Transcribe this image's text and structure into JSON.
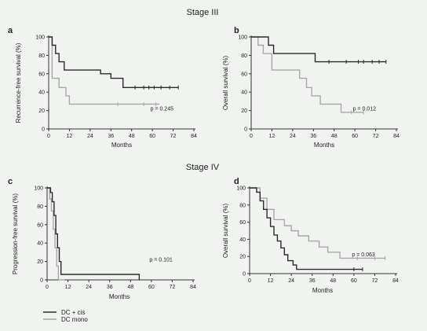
{
  "headings": {
    "top": "Stage III",
    "bottom": "Stage  IV"
  },
  "colors": {
    "dc_cis": "#2b2b2b",
    "dc_mono": "#a8a8a8",
    "axis": "#333333",
    "background": "#f1f3f1"
  },
  "legend": [
    {
      "label": "DC + cis",
      "color": "#2b2b2b"
    },
    {
      "label": "DC mono",
      "color": "#a8a8a8"
    }
  ],
  "chart_data": [
    {
      "type": "line",
      "panel": "a",
      "ylabel": "Recurrence-free survival (%)",
      "xlabel": "Months",
      "xlim": [
        0,
        84
      ],
      "ylim": [
        0,
        100
      ],
      "xticks": [
        0,
        12,
        24,
        36,
        48,
        60,
        72,
        84
      ],
      "yticks": [
        0,
        20,
        40,
        60,
        80,
        100
      ],
      "annotation": "p = 0.245",
      "series": [
        {
          "name": "DC + cis",
          "color": "#2b2b2b",
          "x": [
            0,
            2,
            2,
            4,
            4,
            6,
            6,
            9,
            9,
            30,
            30,
            36,
            36,
            43,
            43,
            75
          ],
          "y": [
            100,
            100,
            91,
            91,
            82,
            82,
            73,
            73,
            64,
            64,
            60,
            60,
            55,
            55,
            45,
            45
          ],
          "censor_x": [
            50,
            55,
            58,
            61,
            65,
            70,
            75
          ],
          "censor_y": [
            45,
            45,
            45,
            45,
            45,
            45,
            45
          ]
        },
        {
          "name": "DC mono",
          "color": "#a8a8a8",
          "x": [
            0,
            2,
            2,
            6,
            6,
            10,
            10,
            12,
            12,
            64
          ],
          "y": [
            100,
            100,
            55,
            55,
            45,
            45,
            36,
            36,
            27,
            27
          ],
          "censor_x": [
            40,
            55,
            62
          ],
          "censor_y": [
            27,
            27,
            27
          ]
        }
      ]
    },
    {
      "type": "line",
      "panel": "b",
      "ylabel": "Overall survival (%)",
      "xlabel": "Months",
      "xlim": [
        0,
        84
      ],
      "ylim": [
        0,
        100
      ],
      "xticks": [
        0,
        12,
        24,
        36,
        48,
        60,
        72,
        84
      ],
      "yticks": [
        0,
        20,
        40,
        60,
        80,
        100
      ],
      "annotation": "p = 0.012",
      "series": [
        {
          "name": "DC + cis",
          "color": "#2b2b2b",
          "x": [
            0,
            10,
            10,
            13,
            13,
            37,
            37,
            78
          ],
          "y": [
            100,
            100,
            91,
            91,
            82,
            82,
            73,
            73
          ],
          "censor_x": [
            45,
            55,
            62,
            65,
            70,
            74,
            78
          ],
          "censor_y": [
            73,
            73,
            73,
            73,
            73,
            73,
            73
          ]
        },
        {
          "name": "DC mono",
          "color": "#a8a8a8",
          "x": [
            0,
            4,
            4,
            7,
            7,
            12,
            12,
            28,
            28,
            32,
            32,
            35,
            35,
            40,
            40,
            52,
            52,
            65
          ],
          "y": [
            100,
            100,
            91,
            91,
            82,
            82,
            64,
            64,
            55,
            55,
            45,
            45,
            36,
            36,
            27,
            27,
            18,
            18
          ],
          "censor_x": [
            58,
            65
          ],
          "censor_y": [
            18,
            18
          ]
        }
      ]
    },
    {
      "type": "line",
      "panel": "c",
      "ylabel": "Progression-free survival (%)",
      "xlabel": "Months",
      "xlim": [
        0,
        84
      ],
      "ylim": [
        0,
        100
      ],
      "xticks": [
        0,
        12,
        24,
        36,
        48,
        60,
        72,
        84
      ],
      "yticks": [
        0,
        20,
        40,
        60,
        80,
        100
      ],
      "annotation": "p = 0.101",
      "series": [
        {
          "name": "DC + cis",
          "color": "#2b2b2b",
          "x": [
            0,
            2,
            2,
            3,
            3,
            4,
            4,
            5,
            5,
            6,
            6,
            7,
            7,
            8,
            8,
            53,
            53
          ],
          "y": [
            100,
            100,
            95,
            95,
            85,
            85,
            70,
            70,
            50,
            50,
            35,
            35,
            20,
            20,
            6,
            6,
            0
          ],
          "censor_x": [],
          "censor_y": []
        },
        {
          "name": "DC mono",
          "color": "#a8a8a8",
          "x": [
            0,
            1.5,
            1.5,
            2.5,
            2.5,
            3.5,
            3.5,
            4.5,
            4.5,
            5.5,
            5.5,
            6.5,
            6.5,
            10
          ],
          "y": [
            100,
            100,
            88,
            88,
            75,
            75,
            55,
            55,
            35,
            35,
            15,
            15,
            0,
            0
          ],
          "censor_x": [],
          "censor_y": []
        }
      ]
    },
    {
      "type": "line",
      "panel": "d",
      "ylabel": "Overall survival (%)",
      "xlabel": "Months",
      "xlim": [
        0,
        84
      ],
      "ylim": [
        0,
        100
      ],
      "xticks": [
        0,
        12,
        24,
        36,
        48,
        60,
        72,
        84
      ],
      "yticks": [
        0,
        20,
        40,
        60,
        80,
        100
      ],
      "annotation": "p = 0.063",
      "series": [
        {
          "name": "DC + cis",
          "color": "#2b2b2b",
          "x": [
            0,
            4,
            4,
            6,
            6,
            8,
            8,
            10,
            10,
            12,
            12,
            14,
            14,
            16,
            16,
            18,
            18,
            20,
            20,
            22,
            22,
            25,
            25,
            27,
            27,
            65
          ],
          "y": [
            100,
            100,
            95,
            95,
            85,
            85,
            75,
            75,
            65,
            65,
            55,
            55,
            45,
            45,
            38,
            38,
            30,
            30,
            22,
            22,
            15,
            15,
            10,
            10,
            5,
            5
          ],
          "censor_x": [
            60,
            65
          ],
          "censor_y": [
            5,
            5
          ]
        },
        {
          "name": "DC mono",
          "color": "#a8a8a8",
          "x": [
            0,
            6,
            6,
            10,
            10,
            14,
            14,
            20,
            20,
            24,
            24,
            28,
            28,
            34,
            34,
            40,
            40,
            45,
            45,
            52,
            52,
            78
          ],
          "y": [
            100,
            100,
            88,
            88,
            75,
            75,
            63,
            63,
            56,
            56,
            50,
            50,
            44,
            44,
            38,
            38,
            31,
            31,
            25,
            25,
            18,
            18
          ],
          "censor_x": [
            62,
            72,
            78
          ],
          "censor_y": [
            18,
            18,
            18
          ]
        }
      ]
    }
  ]
}
